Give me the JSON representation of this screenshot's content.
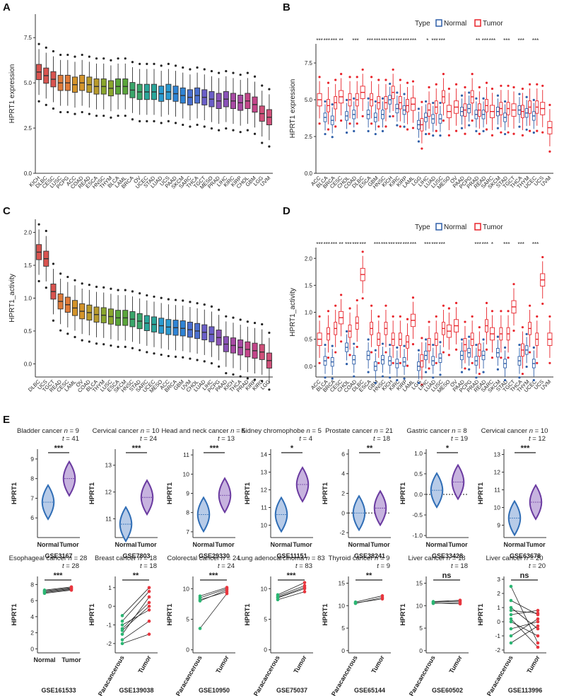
{
  "figure": {
    "panel_labels": [
      "A",
      "B",
      "C",
      "D",
      "E"
    ]
  },
  "colors": {
    "normal": "#2e5ea8",
    "tumor": "#e8232a",
    "violin_normal": "#2f6db5",
    "violin_tumor": "#6a3aa0",
    "paired_normal": "#2bb673",
    "paired_tumor": "#e8363e",
    "paired_line": "#222222",
    "rainbow": [
      "#d9534f",
      "#e07b39",
      "#d4942a",
      "#b89a2a",
      "#8aa62c",
      "#5aa63a",
      "#3aa66a",
      "#2aa69a",
      "#2a9ad0",
      "#2f84d6",
      "#4a6fd0",
      "#6a5ec8",
      "#8a52b8",
      "#a84aa4",
      "#c4458a",
      "#d0507a"
    ]
  },
  "chart_data": [
    {
      "id": "A",
      "type": "box",
      "title": "",
      "ylabel": "HPRT1 expression",
      "ylim": [
        0,
        8.8
      ],
      "yticks": [
        "0.0",
        "2.5",
        "5.0",
        "7.5"
      ],
      "categories": [
        "KICH",
        "DLBC",
        "CESC",
        "LUSC",
        "PCPG",
        "ACC",
        "COAD",
        "READ",
        "ESCA",
        "HNSC",
        "THYM",
        "BLCA",
        "LAML",
        "BRCA",
        "OV",
        "UCEC",
        "STAD",
        "LUAD",
        "UCS",
        "PAAD",
        "SKCM",
        "SARC",
        "THCA",
        "TGCT",
        "MESO",
        "PRAD",
        "LIHC",
        "KIRC",
        "KIRP",
        "CHOL",
        "GBM",
        "LGG",
        "UVM"
      ],
      "medians": [
        5.6,
        5.4,
        5.2,
        5.0,
        5.0,
        4.9,
        5.0,
        4.9,
        4.8,
        4.8,
        4.7,
        4.8,
        4.8,
        4.6,
        4.5,
        4.5,
        4.5,
        4.4,
        4.5,
        4.4,
        4.3,
        4.2,
        4.3,
        4.2,
        4.1,
        4.0,
        4.1,
        4.0,
        3.9,
        4.0,
        3.8,
        3.3,
        3.1
      ]
    },
    {
      "id": "B",
      "type": "box",
      "legend_title": "Type",
      "legend": [
        "Normal",
        "Tumor"
      ],
      "legend_placement": "top",
      "ylabel": "HPRT1 expression",
      "ylim": [
        0,
        8.8
      ],
      "yticks": [
        "0.0",
        "2.5",
        "5.0",
        "7.5"
      ],
      "categories": [
        "ACC",
        "BLCA",
        "BRCA",
        "CESC",
        "CHOL",
        "COAD",
        "DLBC",
        "ESCA",
        "GBM",
        "HNSC",
        "KICH",
        "KIRC",
        "KIRP",
        "LAML",
        "LGG",
        "LIHC",
        "LUAD",
        "LUSC",
        "MESO",
        "OV",
        "PAAD",
        "PCPG",
        "PRAD",
        "READ",
        "SARC",
        "SKCM",
        "STAD",
        "TGCT",
        "THCA",
        "THYM",
        "UCEC",
        "UCS",
        "UVM"
      ],
      "normal_medians": [
        null,
        3.8,
        3.6,
        null,
        3.9,
        4.0,
        null,
        4.0,
        3.8,
        4.0,
        5.0,
        4.4,
        4.3,
        null,
        3.3,
        3.8,
        3.7,
        3.7,
        null,
        null,
        4.2,
        4.4,
        4.0,
        4.0,
        null,
        4.2,
        3.8,
        null,
        4.3,
        4.1,
        3.9,
        null,
        null
      ],
      "tumor_medians": [
        5.0,
        4.6,
        4.8,
        5.2,
        5.0,
        5.0,
        5.5,
        5.0,
        4.8,
        4.8,
        5.5,
        4.8,
        4.6,
        4.7,
        3.3,
        4.3,
        4.5,
        5.2,
        4.2,
        4.5,
        4.3,
        5.2,
        4.3,
        4.6,
        4.2,
        4.4,
        4.4,
        4.3,
        4.2,
        4.5,
        4.5,
        4.4,
        3.1
      ],
      "significance": [
        "***",
        "***",
        "***",
        "**",
        "",
        "***",
        "",
        "***",
        "***",
        "***",
        "***",
        "***",
        "***",
        "***",
        "",
        "*",
        "***",
        "***",
        "",
        "",
        "",
        "",
        "**",
        "***",
        "***",
        "",
        "***",
        "",
        "***",
        "",
        "***",
        "",
        ""
      ]
    },
    {
      "id": "C",
      "type": "box",
      "ylabel": "HPRT1_activity",
      "ylim": [
        -0.2,
        2.2
      ],
      "yticks": [
        "0.0",
        "0.5",
        "1.0",
        "1.5",
        "2.0"
      ],
      "categories": [
        "DLBC",
        "UCS",
        "TGCT",
        "READ",
        "CESC",
        "LAML",
        "OV",
        "COAD",
        "BLCA",
        "THYM",
        "LUSC",
        "ESCA",
        "SKCM",
        "HNSC",
        "STAD",
        "SARC",
        "UCEC",
        "MESO",
        "ACC",
        "BRCA",
        "GBM",
        "UVM",
        "CHOL",
        "LUAD",
        "LIHC",
        "PCPG",
        "PAAD",
        "KICH",
        "THCA",
        "PRAD",
        "KIRP",
        "KIRC",
        "LGG"
      ],
      "medians": [
        1.7,
        1.6,
        1.1,
        0.95,
        0.9,
        0.85,
        0.8,
        0.78,
        0.75,
        0.74,
        0.72,
        0.7,
        0.7,
        0.68,
        0.65,
        0.62,
        0.6,
        0.58,
        0.56,
        0.55,
        0.54,
        0.52,
        0.5,
        0.48,
        0.45,
        0.4,
        0.3,
        0.28,
        0.25,
        0.22,
        0.2,
        0.18,
        0.05
      ]
    },
    {
      "id": "D",
      "type": "box",
      "legend_title": "Type",
      "legend": [
        "Normal",
        "Tumor"
      ],
      "legend_placement": "top",
      "ylabel": "HPRT1_activity",
      "ylim": [
        -0.2,
        2.2
      ],
      "yticks": [
        "0.0",
        "0.5",
        "1.0",
        "1.5",
        "2.0"
      ],
      "categories": [
        "ACC",
        "BLCA",
        "BRCA",
        "CESC",
        "CHOL",
        "COAD",
        "DLBC",
        "ESCA",
        "GBM",
        "HNSC",
        "KICH",
        "KIRC",
        "KIRP",
        "LAML",
        "LGG",
        "LIHC",
        "LUAD",
        "LUSC",
        "MESO",
        "OV",
        "PAAD",
        "PCPG",
        "PRAD",
        "READ",
        "SARC",
        "SKCM",
        "STAD",
        "TGCT",
        "THCA",
        "THYM",
        "UCEC",
        "UCS",
        "UVM"
      ],
      "normal_medians": [
        null,
        0.1,
        0.08,
        null,
        0.35,
        0.12,
        null,
        0.2,
        0.0,
        0.12,
        0.1,
        0.05,
        0.08,
        null,
        0.0,
        0.2,
        0.1,
        0.15,
        null,
        null,
        0.2,
        0.25,
        0.1,
        0.2,
        null,
        0.25,
        0.05,
        null,
        0.1,
        0.3,
        0.05,
        null,
        null
      ],
      "tumor_medians": [
        0.5,
        0.6,
        0.7,
        0.9,
        0.65,
        0.8,
        1.7,
        0.7,
        0.5,
        0.7,
        0.5,
        0.5,
        0.45,
        0.85,
        0.1,
        0.4,
        0.5,
        0.7,
        0.65,
        0.75,
        0.4,
        0.5,
        0.3,
        0.75,
        0.6,
        0.6,
        0.6,
        1.1,
        0.3,
        0.7,
        0.5,
        1.6,
        0.5
      ],
      "significance": [
        "***",
        "***",
        "***",
        "**",
        "***",
        "***",
        "***",
        "",
        "***",
        "***",
        "***",
        "***",
        "***",
        "***",
        "",
        "***",
        "***",
        "***",
        "",
        "",
        "",
        "",
        "***",
        "***",
        "*",
        "",
        "***",
        "",
        "***",
        "",
        "***",
        "",
        ""
      ]
    },
    {
      "id": "E",
      "type": "violin-and-paired",
      "violin_panels": [
        {
          "title": "Bladder cancer",
          "n": "9",
          "t": "41",
          "gse": "GSE3167",
          "sig": "***",
          "ylabel": "HPRT1",
          "yticks": [
            "6",
            "7",
            "8",
            "9"
          ],
          "ylim": [
            5,
            9.5
          ],
          "groups": [
            "Normal",
            "Tumor"
          ],
          "medians": [
            6.8,
            8.0
          ],
          "dashed": false
        },
        {
          "title": "Cervical cancer",
          "n": "10",
          "t": "24",
          "gse": "GSE7803",
          "sig": "***",
          "ylabel": "HPRT1",
          "yticks": [
            "11",
            "12",
            "13"
          ],
          "ylim": [
            10.3,
            13.6
          ],
          "groups": [
            "Normal",
            "Tumor"
          ],
          "medians": [
            10.8,
            11.8
          ],
          "dashed": false
        },
        {
          "title": "Head and neck cancer",
          "n": "5",
          "t": "13",
          "gse": "GSE29330",
          "sig": "***",
          "ylabel": "HPRT1",
          "yticks": [
            "7",
            "8",
            "9",
            "10",
            "11"
          ],
          "ylim": [
            6.7,
            11.3
          ],
          "groups": [
            "Normal",
            "Tumor"
          ],
          "medians": [
            7.9,
            8.9
          ],
          "dashed": false
        },
        {
          "title": "Kidney chromophobe",
          "n": "5",
          "t": "4",
          "gse": "GSE11151",
          "sig": "*",
          "ylabel": "HPRT1",
          "yticks": [
            "10",
            "11",
            "12",
            "13",
            "14"
          ],
          "ylim": [
            9.3,
            14.3
          ],
          "groups": [
            "Normal",
            "Tumor"
          ],
          "medians": [
            10.6,
            12.3
          ],
          "dashed": false
        },
        {
          "title": "Prostate cancer",
          "n": "21",
          "t": "18",
          "gse": "GSE38241",
          "sig": "**",
          "ylabel": "HPRT1",
          "yticks": [
            "-2",
            "0",
            "2",
            "4",
            "6"
          ],
          "ylim": [
            -2.5,
            6.5
          ],
          "groups": [
            "Normal",
            "Tumor"
          ],
          "medians": [
            0.0,
            0.5
          ],
          "dashed": true
        },
        {
          "title": "Gastric cancer",
          "n": "8",
          "t": "19",
          "gse": "GSE33428",
          "sig": "*",
          "ylabel": "HPRT1",
          "yticks": [
            "-1.0",
            "-0.5",
            "0.0",
            "0.5",
            "1.0"
          ],
          "ylim": [
            -1.05,
            1.1
          ],
          "groups": [
            "Normal",
            "Tumor"
          ],
          "medians": [
            0.1,
            0.3
          ],
          "dashed": true
        },
        {
          "title": "Cervical cancer",
          "n": "10",
          "t": "12",
          "gse": "GSE63678",
          "sig": "***",
          "ylabel": "HPRT1",
          "yticks": [
            "9",
            "10",
            "11",
            "12",
            "13"
          ],
          "ylim": [
            8.3,
            13.3
          ],
          "groups": [
            "Normal",
            "Tumor"
          ],
          "medians": [
            9.4,
            10.3
          ],
          "dashed": false
        }
      ],
      "paired_panels": [
        {
          "title": "Esophageal cancer",
          "n": "28",
          "t": "28",
          "gse": "GSE161533",
          "sig": "***",
          "ylabel": "HPRT1",
          "yticks": [
            "0",
            "2",
            "4",
            "6",
            "8"
          ],
          "ylim": [
            -0.5,
            9
          ],
          "groups": [
            "Normal",
            "Tumor"
          ],
          "left": [
            7.2,
            7.1,
            7.0,
            7.3,
            6.9
          ],
          "right": [
            7.6,
            7.5,
            7.4,
            7.7,
            7.3
          ]
        },
        {
          "title": "Breast cancer",
          "n": "18",
          "t": "18",
          "gse": "GSE139038",
          "sig": "**",
          "ylabel": "HPRT1",
          "yticks": [
            "-2",
            "-1",
            "0",
            "1"
          ],
          "ylim": [
            -2.5,
            1.6
          ],
          "groups": [
            "Paracancerous",
            "Tumor"
          ],
          "left": [
            -1.5,
            -1.0,
            -0.5,
            -2.0,
            -1.2,
            -0.8,
            -1.8,
            -1.3
          ],
          "right": [
            0.5,
            -0.2,
            1.0,
            -1.5,
            0.2,
            0.8,
            -0.8,
            0.0
          ]
        },
        {
          "title": "Colorectal cancer",
          "n": "24",
          "t": "24",
          "gse": "GSE10950",
          "sig": "***",
          "ylabel": "HPRT1",
          "yticks": [
            "0",
            "5",
            "10"
          ],
          "ylim": [
            -0.5,
            12
          ],
          "groups": [
            "Paracancerous",
            "Tumor"
          ],
          "left": [
            8.5,
            8.2,
            8.8,
            3.5,
            8.0
          ],
          "right": [
            10.0,
            9.5,
            10.2,
            9.2,
            9.8
          ]
        },
        {
          "title": "Lung adenocarcinoma",
          "n": "83",
          "t": "83",
          "gse": "GSE75037",
          "sig": "***",
          "ylabel": "HPRT1",
          "yticks": [
            "0",
            "5",
            "10"
          ],
          "ylim": [
            -0.5,
            12
          ],
          "groups": [
            "Paracancerous",
            "Tumor"
          ],
          "left": [
            8.5,
            8.8,
            8.2,
            9.0,
            8.6
          ],
          "right": [
            10.0,
            10.5,
            9.5,
            11.0,
            10.2
          ]
        },
        {
          "title": "Thyroid cancer",
          "n": "9",
          "t": "9",
          "gse": "GSE65144",
          "sig": "**",
          "ylabel": "HPRT1",
          "yticks": [
            "0",
            "5",
            "10",
            "15"
          ],
          "ylim": [
            -0.5,
            16.5
          ],
          "groups": [
            "Paracancerous",
            "Tumor"
          ],
          "left": [
            10.5,
            10.8,
            10.6
          ],
          "right": [
            11.8,
            12.2,
            11.5
          ]
        },
        {
          "title": "Liver cancer",
          "n": "18",
          "t": "18",
          "gse": "GSE60502",
          "sig": "ns",
          "ylabel": "HPRT1",
          "yticks": [
            "0",
            "5",
            "10",
            "15"
          ],
          "ylim": [
            -0.5,
            16.5
          ],
          "groups": [
            "Paracancerous",
            "Tumor"
          ],
          "left": [
            10.5,
            10.8,
            10.6,
            10.9
          ],
          "right": [
            10.7,
            11.0,
            10.4,
            11.2
          ]
        },
        {
          "title": "Liver cancer",
          "n": "20",
          "t": "20",
          "gse": "GSE113996",
          "sig": "ns",
          "ylabel": "HPRT1",
          "yticks": [
            "-2",
            "-1",
            "0",
            "1",
            "2",
            "3"
          ],
          "ylim": [
            -2.2,
            3.2
          ],
          "groups": [
            "Paracancerous",
            "Tumor"
          ],
          "left": [
            2.5,
            1.5,
            1.0,
            0.5,
            0.0,
            -0.5,
            -1.0,
            -1.5,
            0.2,
            0.8
          ],
          "right": [
            -1.5,
            0.5,
            -0.5,
            0.8,
            -1.0,
            0.0,
            0.2,
            -0.3,
            -1.8,
            0.6
          ]
        }
      ]
    }
  ]
}
